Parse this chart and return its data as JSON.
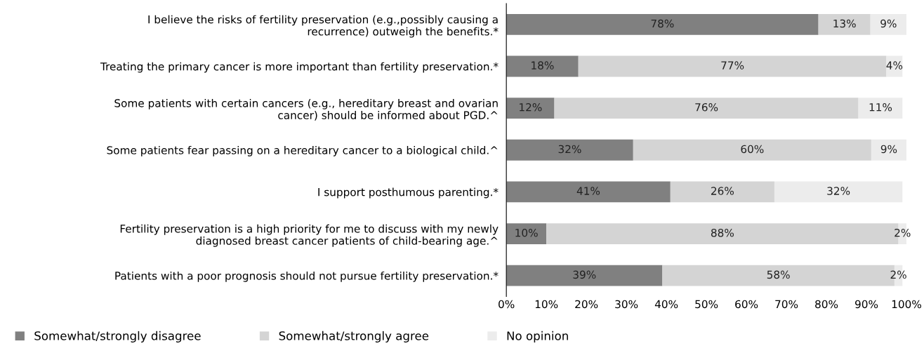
{
  "chart_data": {
    "type": "bar",
    "orientation": "horizontal",
    "stacked": true,
    "categories": [
      "I believe the risks of fertility preservation (e.g.,possibly causing a\nrecurrence) outweigh the benefits.*",
      "Treating the primary cancer is more important than fertility preservation.*",
      "Some patients with certain cancers (e.g., hereditary breast and ovarian\ncancer) should be informed about PGD.^",
      "Some patients fear passing on a hereditary cancer to a biological child.^",
      "I support posthumous parenting.*",
      "Fertility preservation is a high priority for me to discuss with my newly\ndiagnosed breast cancer patients of child-bearing age.^",
      "Patients with a poor prognosis should not pursue fertility preservation.*"
    ],
    "series": [
      {
        "name": "Somewhat/strongly disagree",
        "color": "#808080",
        "values": [
          78,
          18,
          12,
          31.7,
          41,
          10,
          39
        ],
        "value_labels": [
          "78%",
          "18%",
          "12%",
          "32%",
          "41%",
          "10%",
          "39%"
        ]
      },
      {
        "name": "Somewhat/strongly agree",
        "color": "#d4d4d4",
        "values": [
          13,
          77,
          76,
          59.5,
          26,
          88,
          58
        ],
        "value_labels": [
          "13%",
          "77%",
          "76%",
          "60%",
          "26%",
          "88%",
          "58%"
        ]
      },
      {
        "name": "No opinion",
        "color": "#ececec",
        "values": [
          9,
          4,
          11,
          8.8,
          32,
          2,
          2
        ],
        "value_labels": [
          "9%",
          "4%",
          "11%",
          "9%",
          "32%",
          "2%",
          "2%"
        ]
      }
    ],
    "xlim": [
      0,
      100
    ],
    "xticks": [
      {
        "value": 0,
        "label": "0%"
      },
      {
        "value": 10,
        "label": "10%"
      },
      {
        "value": 20,
        "label": "20%"
      },
      {
        "value": 30,
        "label": "30%"
      },
      {
        "value": 40,
        "label": "40%"
      },
      {
        "value": 50,
        "label": "50%"
      },
      {
        "value": 60,
        "label": "60%"
      },
      {
        "value": 70,
        "label": "70%"
      },
      {
        "value": 80,
        "label": "80%"
      },
      {
        "value": 90,
        "label": "90%"
      },
      {
        "value": 100,
        "label": "100%"
      }
    ],
    "legend": "bottom left",
    "grid": false
  }
}
